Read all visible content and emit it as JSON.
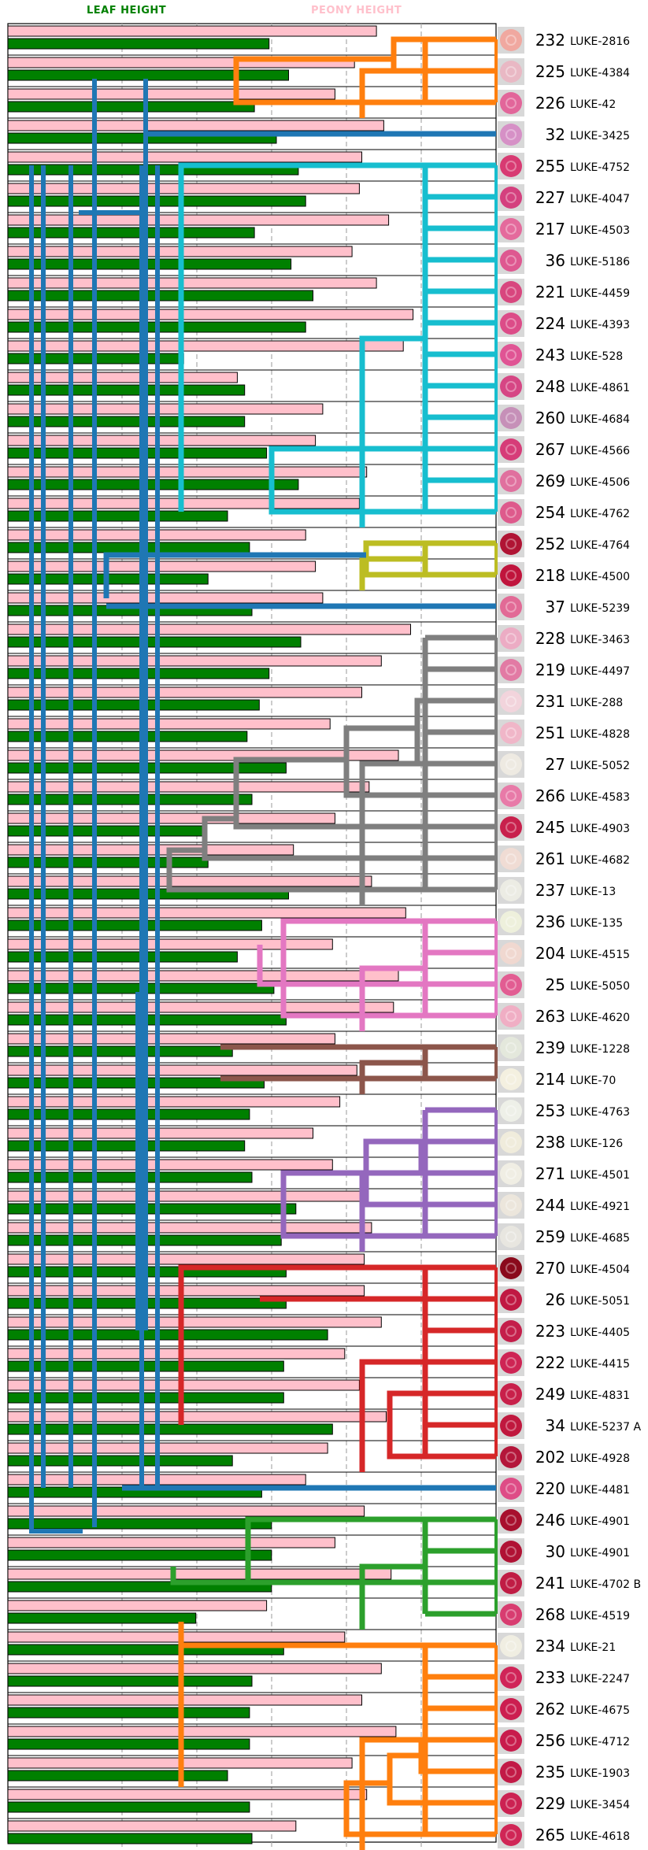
{
  "headers": {
    "leaf": "LEAF HEIGHT",
    "peony": "PEONY HEIGHT"
  },
  "colors": {
    "leaf_bar": "#008000",
    "peony_bar": "#ffc0cb",
    "header_leaf": "#008000",
    "header_peony": "#ffc0cb",
    "grid": "#aaaaaa",
    "tree_blue": "#1f77b4",
    "tree_orange": "#ff7f0e",
    "tree_cyan": "#17becf",
    "tree_olive": "#bcbd22",
    "tree_gray": "#7f7f7f",
    "tree_pink": "#e377c2",
    "tree_brown": "#8c564b",
    "tree_purple": "#9467bd",
    "tree_red": "#d62728",
    "tree_green": "#2ca02c"
  },
  "chart_data": {
    "type": "bar",
    "orientation": "horizontal",
    "grid": "vertical dashed lines",
    "series": [
      {
        "name": "PEONY HEIGHT",
        "color": "#ffc0cb"
      },
      {
        "name": "LEAF HEIGHT",
        "color": "#008000"
      }
    ],
    "rows": [
      {
        "id": "232",
        "label": "LUKE-2816",
        "peony": 0.755,
        "leaf": 0.535,
        "thumb": "#f0a8a0"
      },
      {
        "id": "225",
        "label": "LUKE-4384",
        "peony": 0.71,
        "leaf": 0.575,
        "thumb": "#e9b8c4"
      },
      {
        "id": "226",
        "label": "LUKE-42",
        "peony": 0.67,
        "leaf": 0.505,
        "thumb": "#e2669a"
      },
      {
        "id": "32",
        "label": "LUKE-3425",
        "peony": 0.77,
        "leaf": 0.55,
        "thumb": "#d690c6"
      },
      {
        "id": "255",
        "label": "LUKE-4752",
        "peony": 0.725,
        "leaf": 0.595,
        "thumb": "#d83a72"
      },
      {
        "id": "227",
        "label": "LUKE-4047",
        "peony": 0.72,
        "leaf": 0.61,
        "thumb": "#d4407e"
      },
      {
        "id": "217",
        "label": "LUKE-4503",
        "peony": 0.78,
        "leaf": 0.505,
        "thumb": "#e46a9c"
      },
      {
        "id": "36",
        "label": "LUKE-5186",
        "peony": 0.705,
        "leaf": 0.58,
        "thumb": "#de5890"
      },
      {
        "id": "221",
        "label": "LUKE-4459",
        "peony": 0.755,
        "leaf": 0.625,
        "thumb": "#d8467e"
      },
      {
        "id": "224",
        "label": "LUKE-4393",
        "peony": 0.83,
        "leaf": 0.61,
        "thumb": "#dc4c88"
      },
      {
        "id": "243",
        "label": "LUKE-528",
        "peony": 0.81,
        "leaf": 0.36,
        "thumb": "#e05494"
      },
      {
        "id": "248",
        "label": "LUKE-4861",
        "peony": 0.47,
        "leaf": 0.485,
        "thumb": "#d64684"
      },
      {
        "id": "260",
        "label": "LUKE-4684",
        "peony": 0.645,
        "leaf": 0.485,
        "thumb": "#c690b8"
      },
      {
        "id": "267",
        "label": "LUKE-4566",
        "peony": 0.63,
        "leaf": 0.53,
        "thumb": "#d63c78"
      },
      {
        "id": "269",
        "label": "LUKE-4506",
        "peony": 0.735,
        "leaf": 0.595,
        "thumb": "#e0709e"
      },
      {
        "id": "254",
        "label": "LUKE-4762",
        "peony": 0.72,
        "leaf": 0.45,
        "thumb": "#de5a8c"
      },
      {
        "id": "252",
        "label": "LUKE-4764",
        "peony": 0.61,
        "leaf": 0.495,
        "thumb": "#b01434"
      },
      {
        "id": "218",
        "label": "LUKE-4500",
        "peony": 0.63,
        "leaf": 0.41,
        "thumb": "#c0143c"
      },
      {
        "id": "37",
        "label": "LUKE-5239",
        "peony": 0.645,
        "leaf": 0.5,
        "thumb": "#e26a96"
      },
      {
        "id": "228",
        "label": "LUKE-3463",
        "peony": 0.825,
        "leaf": 0.6,
        "thumb": "#ecacc4"
      },
      {
        "id": "219",
        "label": "LUKE-4497",
        "peony": 0.765,
        "leaf": 0.535,
        "thumb": "#e27aa4"
      },
      {
        "id": "231",
        "label": "LUKE-288",
        "peony": 0.725,
        "leaf": 0.515,
        "thumb": "#f2d4dc"
      },
      {
        "id": "251",
        "label": "LUKE-4828",
        "peony": 0.66,
        "leaf": 0.49,
        "thumb": "#f0b6c8"
      },
      {
        "id": "27",
        "label": "LUKE-5052",
        "peony": 0.8,
        "leaf": 0.57,
        "thumb": "#eeeae2"
      },
      {
        "id": "266",
        "label": "LUKE-4583",
        "peony": 0.74,
        "leaf": 0.5,
        "thumb": "#e87aa8"
      },
      {
        "id": "245",
        "label": "LUKE-4903",
        "peony": 0.67,
        "leaf": 0.405,
        "thumb": "#c8204c"
      },
      {
        "id": "261",
        "label": "LUKE-4682",
        "peony": 0.585,
        "leaf": 0.41,
        "thumb": "#f0dcd4"
      },
      {
        "id": "237",
        "label": "LUKE-13",
        "peony": 0.745,
        "leaf": 0.575,
        "thumb": "#ecece4"
      },
      {
        "id": "236",
        "label": "LUKE-135",
        "peony": 0.815,
        "leaf": 0.52,
        "thumb": "#eef0dc"
      },
      {
        "id": "204",
        "label": "LUKE-4515",
        "peony": 0.665,
        "leaf": 0.47,
        "thumb": "#f0d8d0"
      },
      {
        "id": "25",
        "label": "LUKE-5050",
        "peony": 0.8,
        "leaf": 0.545,
        "thumb": "#e25c92"
      },
      {
        "id": "263",
        "label": "LUKE-4620",
        "peony": 0.79,
        "leaf": 0.57,
        "thumb": "#f0aec4"
      },
      {
        "id": "239",
        "label": "LUKE-1228",
        "peony": 0.67,
        "leaf": 0.46,
        "thumb": "#e4e8dc"
      },
      {
        "id": "214",
        "label": "LUKE-70",
        "peony": 0.715,
        "leaf": 0.525,
        "thumb": "#f4f0e0"
      },
      {
        "id": "253",
        "label": "LUKE-4763",
        "peony": 0.68,
        "leaf": 0.495,
        "thumb": "#eef0e8"
      },
      {
        "id": "238",
        "label": "LUKE-126",
        "peony": 0.625,
        "leaf": 0.485,
        "thumb": "#f0ecdc"
      },
      {
        "id": "271",
        "label": "LUKE-4501",
        "peony": 0.665,
        "leaf": 0.5,
        "thumb": "#f0eee4"
      },
      {
        "id": "244",
        "label": "LUKE-4921",
        "peony": 0.735,
        "leaf": 0.59,
        "thumb": "#ece6dc"
      },
      {
        "id": "259",
        "label": "LUKE-4685",
        "peony": 0.745,
        "leaf": 0.56,
        "thumb": "#e8e6e0"
      },
      {
        "id": "270",
        "label": "LUKE-4504",
        "peony": 0.73,
        "leaf": 0.57,
        "thumb": "#8a0a1c"
      },
      {
        "id": "26",
        "label": "LUKE-5051",
        "peony": 0.73,
        "leaf": 0.57,
        "thumb": "#c01842"
      },
      {
        "id": "223",
        "label": "LUKE-4405",
        "peony": 0.765,
        "leaf": 0.655,
        "thumb": "#c41e4a"
      },
      {
        "id": "222",
        "label": "LUKE-4415",
        "peony": 0.69,
        "leaf": 0.565,
        "thumb": "#ce2454"
      },
      {
        "id": "249",
        "label": "LUKE-4831",
        "peony": 0.72,
        "leaf": 0.565,
        "thumb": "#c8204a"
      },
      {
        "id": "34",
        "label": "LUKE-5237 A",
        "peony": 0.775,
        "leaf": 0.665,
        "thumb": "#c0183e"
      },
      {
        "id": "202",
        "label": "LUKE-4928",
        "peony": 0.655,
        "leaf": 0.46,
        "thumb": "#b4163a"
      },
      {
        "id": "220",
        "label": "LUKE-4481",
        "peony": 0.61,
        "leaf": 0.52,
        "thumb": "#de4c86"
      },
      {
        "id": "246",
        "label": "LUKE-4901",
        "peony": 0.73,
        "leaf": 0.54,
        "thumb": "#a8102e"
      },
      {
        "id": "30",
        "label": "LUKE-4901",
        "peony": 0.67,
        "leaf": 0.54,
        "thumb": "#b01234"
      },
      {
        "id": "241",
        "label": "LUKE-4702 B",
        "peony": 0.785,
        "leaf": 0.54,
        "thumb": "#c01c44"
      },
      {
        "id": "268",
        "label": "LUKE-4519",
        "peony": 0.53,
        "leaf": 0.385,
        "thumb": "#d83c70"
      },
      {
        "id": "234",
        "label": "LUKE-21",
        "peony": 0.69,
        "leaf": 0.565,
        "thumb": "#f0eee2"
      },
      {
        "id": "233",
        "label": "LUKE-2247",
        "peony": 0.765,
        "leaf": 0.5,
        "thumb": "#d02458"
      },
      {
        "id": "262",
        "label": "LUKE-4675",
        "peony": 0.725,
        "leaf": 0.495,
        "thumb": "#cc1e50"
      },
      {
        "id": "256",
        "label": "LUKE-4712",
        "peony": 0.795,
        "leaf": 0.495,
        "thumb": "#c81c4c"
      },
      {
        "id": "235",
        "label": "LUKE-1903",
        "peony": 0.705,
        "leaf": 0.45,
        "thumb": "#c21a46"
      },
      {
        "id": "229",
        "label": "LUKE-3454",
        "peony": 0.735,
        "leaf": 0.495,
        "thumb": "#cc2252"
      },
      {
        "id": "265",
        "label": "LUKE-4618",
        "peony": 0.59,
        "leaf": 0.5,
        "thumb": "#d02656"
      }
    ]
  },
  "tree": {
    "clusters": [
      {
        "color": "tree_orange",
        "rows": [
          0,
          1,
          2
        ]
      },
      {
        "color": "tree_blue",
        "rows": [
          3
        ]
      },
      {
        "color": "tree_cyan",
        "rows": [
          4,
          5,
          6,
          7,
          8,
          9,
          10,
          11,
          12,
          13,
          14,
          15
        ]
      },
      {
        "color": "tree_olive",
        "rows": [
          16,
          17
        ]
      },
      {
        "color": "tree_blue",
        "rows": [
          18
        ]
      },
      {
        "color": "tree_gray",
        "rows": [
          19,
          20,
          21,
          22,
          23,
          24,
          25,
          26,
          27
        ]
      },
      {
        "color": "tree_pink",
        "rows": [
          28,
          29,
          30,
          31
        ]
      },
      {
        "color": "tree_brown",
        "rows": [
          32,
          33
        ]
      },
      {
        "color": "tree_purple",
        "rows": [
          34,
          35,
          36,
          37,
          38
        ]
      },
      {
        "color": "tree_red",
        "rows": [
          39,
          40,
          41,
          42,
          43,
          44,
          45
        ]
      },
      {
        "color": "tree_blue",
        "rows": [
          46
        ]
      },
      {
        "color": "tree_green",
        "rows": [
          47,
          48,
          49,
          50
        ]
      },
      {
        "color": "tree_orange",
        "rows": [
          51,
          52,
          53,
          54,
          55,
          56,
          57
        ]
      }
    ]
  }
}
